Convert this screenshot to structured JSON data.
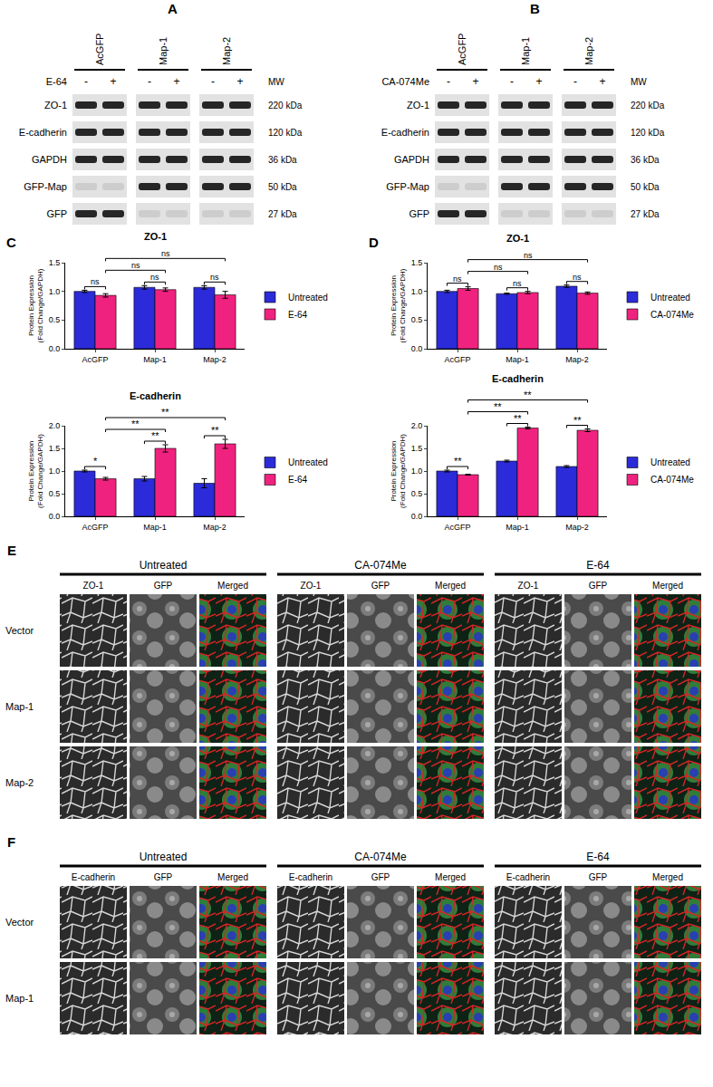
{
  "chart_data": [
    {
      "type": "bar",
      "panel": "C",
      "title": "ZO-1",
      "categories": [
        "AcGFP",
        "Map-1",
        "Map-2"
      ],
      "series": [
        {
          "name": "Untreated",
          "color": "#2b2bd9",
          "values": [
            1.0,
            1.07,
            1.07
          ],
          "errors": [
            0.02,
            0.03,
            0.03
          ]
        },
        {
          "name": "E-64",
          "color": "#f0227f",
          "values": [
            0.93,
            1.03,
            0.94
          ],
          "errors": [
            0.03,
            0.03,
            0.06
          ]
        }
      ],
      "y_label": "Protein Expression (Fold Change/GAPDH)",
      "ylim": [
        0,
        1.5
      ],
      "yticks": [
        {
          "value": 0,
          "label": "0.0"
        },
        {
          "value": 0.5,
          "label": "0.5"
        },
        {
          "value": 1,
          "label": "1.0"
        },
        {
          "value": 1.5,
          "label": "1.5"
        }
      ],
      "grid": false,
      "legend": "right",
      "comparisons": [
        {
          "from": [
            0,
            0
          ],
          "to": [
            0,
            1
          ],
          "label": "ns"
        },
        {
          "from": [
            1,
            0
          ],
          "to": [
            1,
            1
          ],
          "label": "ns"
        },
        {
          "from": [
            2,
            0
          ],
          "to": [
            2,
            1
          ],
          "label": "ns"
        },
        {
          "from": [
            0,
            1
          ],
          "to": [
            1,
            1
          ],
          "label": "ns"
        },
        {
          "from": [
            0,
            1
          ],
          "to": [
            2,
            1
          ],
          "label": "ns"
        }
      ]
    },
    {
      "type": "bar",
      "panel": "C",
      "title": "E-cadherin",
      "categories": [
        "AcGFP",
        "Map-1",
        "Map-2"
      ],
      "series": [
        {
          "name": "Untreated",
          "color": "#2b2bd9",
          "values": [
            1.0,
            0.83,
            0.73
          ],
          "errors": [
            0.02,
            0.05,
            0.1
          ]
        },
        {
          "name": "E-64",
          "color": "#f0227f",
          "values": [
            0.83,
            1.5,
            1.6
          ],
          "errors": [
            0.03,
            0.08,
            0.1
          ]
        }
      ],
      "y_label": "Protein Expression (Fold Change/GAPDH)",
      "ylim": [
        0,
        2.0
      ],
      "yticks": [
        {
          "value": 0,
          "label": "0.0"
        },
        {
          "value": 0.5,
          "label": "0.5"
        },
        {
          "value": 1,
          "label": "1.0"
        },
        {
          "value": 1.5,
          "label": "1.5"
        },
        {
          "value": 2,
          "label": "2.0"
        }
      ],
      "grid": false,
      "legend": "right",
      "comparisons": [
        {
          "from": [
            0,
            0
          ],
          "to": [
            0,
            1
          ],
          "label": "*"
        },
        {
          "from": [
            1,
            0
          ],
          "to": [
            1,
            1
          ],
          "label": "**"
        },
        {
          "from": [
            2,
            0
          ],
          "to": [
            2,
            1
          ],
          "label": "**"
        },
        {
          "from": [
            0,
            1
          ],
          "to": [
            1,
            1
          ],
          "label": "**"
        },
        {
          "from": [
            0,
            1
          ],
          "to": [
            2,
            1
          ],
          "label": "**"
        }
      ]
    },
    {
      "type": "bar",
      "panel": "D",
      "title": "ZO-1",
      "categories": [
        "AcGFP",
        "Map-1",
        "Map-2"
      ],
      "series": [
        {
          "name": "Untreated",
          "color": "#2b2bd9",
          "values": [
            1.0,
            0.96,
            1.09
          ],
          "errors": [
            0.02,
            0.01,
            0.02
          ]
        },
        {
          "name": "CA-074Me",
          "color": "#f0227f",
          "values": [
            1.05,
            0.98,
            0.97
          ],
          "errors": [
            0.03,
            0.02,
            0.02
          ]
        }
      ],
      "y_label": "Protein Expression (Fold Change/GAPDH)",
      "ylim": [
        0,
        1.5
      ],
      "yticks": [
        {
          "value": 0,
          "label": "0.0"
        },
        {
          "value": 0.5,
          "label": "0.5"
        },
        {
          "value": 1,
          "label": "1.0"
        },
        {
          "value": 1.5,
          "label": "1.5"
        }
      ],
      "grid": false,
      "legend": "right",
      "comparisons": [
        {
          "from": [
            0,
            0
          ],
          "to": [
            0,
            1
          ],
          "label": "ns"
        },
        {
          "from": [
            1,
            0
          ],
          "to": [
            1,
            1
          ],
          "label": "ns"
        },
        {
          "from": [
            2,
            0
          ],
          "to": [
            2,
            1
          ],
          "label": "ns"
        },
        {
          "from": [
            0,
            1
          ],
          "to": [
            1,
            1
          ],
          "label": "ns"
        },
        {
          "from": [
            0,
            1
          ],
          "to": [
            2,
            1
          ],
          "label": "ns"
        }
      ]
    },
    {
      "type": "bar",
      "panel": "D",
      "title": "E-cadherin",
      "categories": [
        "AcGFP",
        "Map-1",
        "Map-2"
      ],
      "series": [
        {
          "name": "Untreated",
          "color": "#2b2bd9",
          "values": [
            1.0,
            1.22,
            1.1
          ],
          "errors": [
            0.02,
            0.02,
            0.02
          ]
        },
        {
          "name": "CA-074Me",
          "color": "#f0227f",
          "values": [
            0.92,
            1.95,
            1.9
          ],
          "errors": [
            0.01,
            0.02,
            0.03
          ]
        }
      ],
      "y_label": "Protein Expression (Fold Change/GAPDH)",
      "ylim": [
        0,
        2.0
      ],
      "yticks": [
        {
          "value": 0,
          "label": "0.0"
        },
        {
          "value": 0.5,
          "label": "0.5"
        },
        {
          "value": 1,
          "label": "1.0"
        },
        {
          "value": 1.5,
          "label": "1.5"
        },
        {
          "value": 2,
          "label": "2.0"
        }
      ],
      "grid": false,
      "legend": "right",
      "comparisons": [
        {
          "from": [
            0,
            0
          ],
          "to": [
            0,
            1
          ],
          "label": "**"
        },
        {
          "from": [
            1,
            0
          ],
          "to": [
            1,
            1
          ],
          "label": "**"
        },
        {
          "from": [
            2,
            0
          ],
          "to": [
            2,
            1
          ],
          "label": "**"
        },
        {
          "from": [
            0,
            1
          ],
          "to": [
            1,
            1
          ],
          "label": "**"
        },
        {
          "from": [
            0,
            1
          ],
          "to": [
            2,
            1
          ],
          "label": "**"
        }
      ]
    }
  ],
  "blots": [
    {
      "panel": "A",
      "lanes": [
        "AcGFP",
        "Map-1",
        "Map-2"
      ],
      "treatment": "E-64",
      "signs": [
        "-",
        "+"
      ],
      "mw_header": "MW",
      "rows": [
        {
          "label": "ZO-1",
          "mw": "220 kDa",
          "present": [
            true,
            true,
            true,
            true,
            true,
            true
          ]
        },
        {
          "label": "E-cadherin",
          "mw": "120 kDa",
          "present": [
            true,
            true,
            true,
            true,
            true,
            true
          ]
        },
        {
          "label": "GAPDH",
          "mw": "36 kDa",
          "present": [
            true,
            true,
            true,
            true,
            true,
            true
          ]
        },
        {
          "label": "GFP-Map",
          "mw": "50 kDa",
          "present": [
            false,
            false,
            true,
            true,
            true,
            true
          ]
        },
        {
          "label": "GFP",
          "mw": "27 kDa",
          "present": [
            true,
            true,
            false,
            false,
            false,
            false
          ]
        }
      ]
    },
    {
      "panel": "B",
      "lanes": [
        "AcGFP",
        "Map-1",
        "Map-2"
      ],
      "treatment": "CA-074Me",
      "signs": [
        "-",
        "+"
      ],
      "mw_header": "MW",
      "rows": [
        {
          "label": "ZO-1",
          "mw": "220 kDa",
          "present": [
            true,
            true,
            true,
            true,
            true,
            true
          ]
        },
        {
          "label": "E-cadherin",
          "mw": "120 kDa",
          "present": [
            true,
            true,
            true,
            true,
            true,
            true
          ]
        },
        {
          "label": "GAPDH",
          "mw": "36 kDa",
          "present": [
            true,
            true,
            true,
            true,
            true,
            true
          ]
        },
        {
          "label": "GFP-Map",
          "mw": "50 kDa",
          "present": [
            false,
            false,
            true,
            true,
            true,
            true
          ]
        },
        {
          "label": "GFP",
          "mw": "27 kDa",
          "present": [
            true,
            true,
            false,
            false,
            false,
            false
          ]
        }
      ]
    }
  ],
  "micrographs": [
    {
      "panel": "E",
      "conditions": [
        "Untreated",
        "CA-074Me",
        "E-64"
      ],
      "channels": [
        "ZO-1",
        "GFP",
        "Merged"
      ],
      "rows": [
        "Vector",
        "Map-1",
        "Map-2"
      ]
    },
    {
      "panel": "F",
      "conditions": [
        "Untreated",
        "CA-074Me",
        "E-64"
      ],
      "channels": [
        "E-cadherin",
        "GFP",
        "Merged"
      ],
      "rows": [
        "Vector",
        "Map-1"
      ]
    }
  ]
}
